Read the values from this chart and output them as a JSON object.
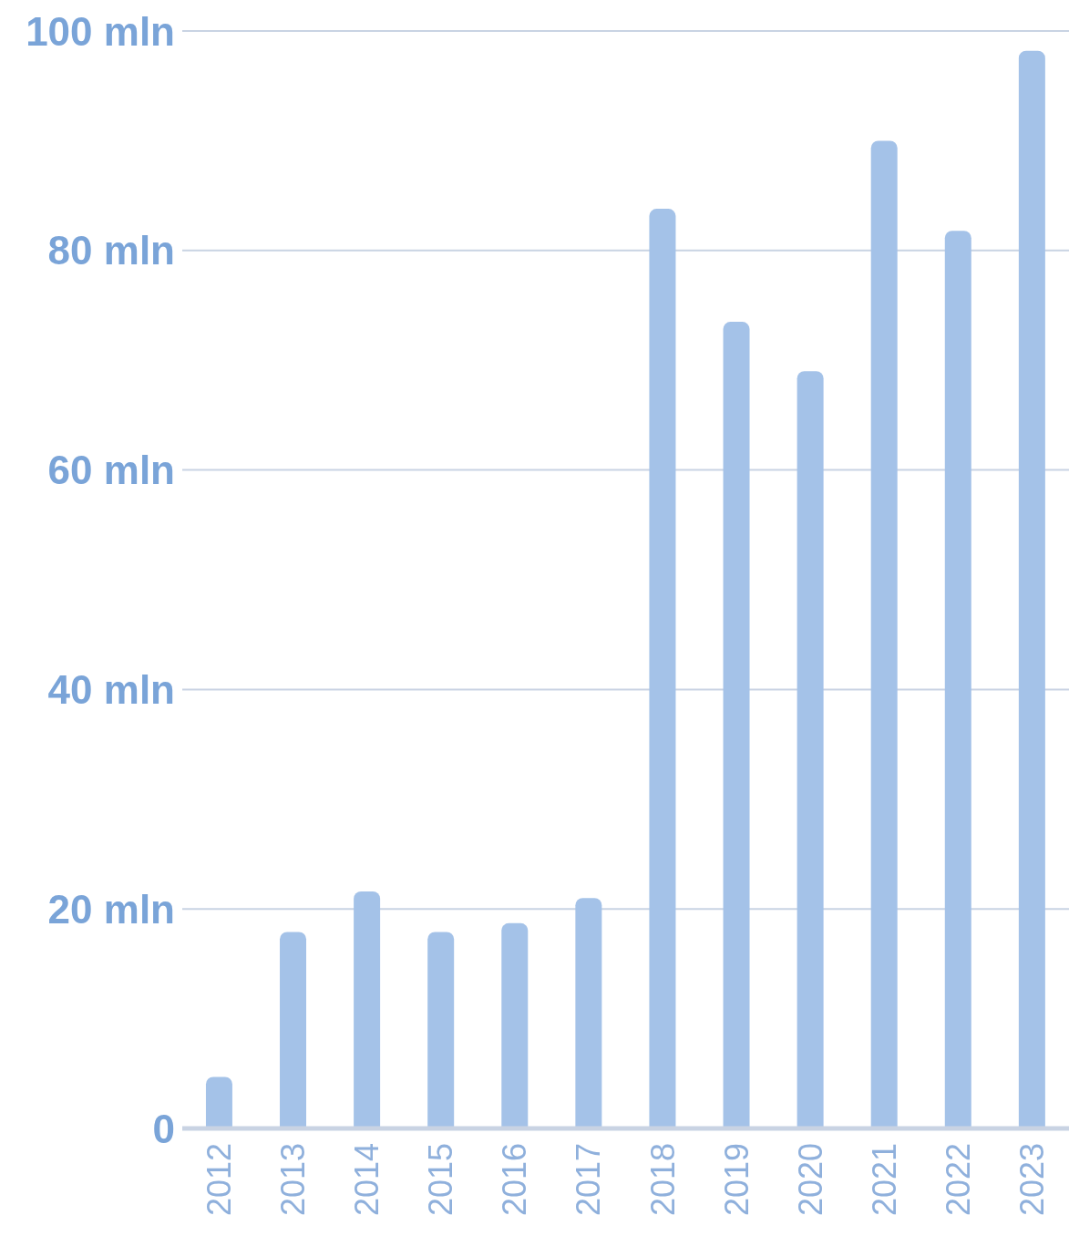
{
  "chart_data": {
    "type": "bar",
    "categories": [
      "2012",
      "2013",
      "2014",
      "2015",
      "2016",
      "2017",
      "2018",
      "2019",
      "2020",
      "2021",
      "2022",
      "2023"
    ],
    "values": [
      4.7,
      17.9,
      21.6,
      17.9,
      18.7,
      21.0,
      83.8,
      73.5,
      69.0,
      90.0,
      81.8,
      98.2
    ],
    "color": "#a4c2e8",
    "ylim": [
      0,
      100
    ],
    "yticks": [
      {
        "value": 0,
        "label": "0"
      },
      {
        "value": 20,
        "label": "20 mln"
      },
      {
        "value": 40,
        "label": "40 mln"
      },
      {
        "value": 60,
        "label": "60 mln"
      },
      {
        "value": 80,
        "label": "80 mln"
      },
      {
        "value": 100,
        "label": "100 mln"
      }
    ],
    "grid": "y"
  }
}
